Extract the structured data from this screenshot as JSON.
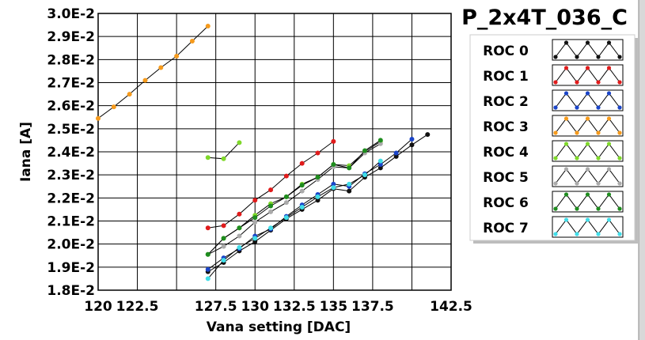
{
  "panel_title": "P_2x4T_036_C",
  "chart_data": {
    "type": "line",
    "title": "",
    "xlabel": "Vana setting [DAC]",
    "ylabel": "Iana [A]",
    "xlim": [
      120,
      142.5
    ],
    "ylim": [
      0.018,
      0.03
    ],
    "x_ticks": [
      120,
      122.5,
      125,
      127.5,
      130,
      132.5,
      135,
      137.5,
      140,
      142.5
    ],
    "x_tick_labels": [
      "120",
      "122.5",
      "",
      "127.5",
      "130",
      "132.5",
      "135",
      "137.5",
      "",
      "142.5"
    ],
    "y_ticks": [
      0.018,
      0.019,
      0.02,
      0.021,
      0.022,
      0.023,
      0.024,
      0.025,
      0.026,
      0.027,
      0.028,
      0.029,
      0.03
    ],
    "y_tick_labels": [
      "1.8E-2",
      "1.9E-2",
      "2.0E-2",
      "2.1E-2",
      "2.2E-2",
      "2.3E-2",
      "2.4E-2",
      "2.5E-2",
      "2.6E-2",
      "2.7E-2",
      "2.8E-2",
      "2.9E-2",
      "3.0E-2"
    ],
    "grid": true,
    "legend_position": "right",
    "series": [
      {
        "name": "ROC 0",
        "color": "#111111",
        "x": [
          127,
          128,
          129,
          130,
          131,
          132,
          133,
          134,
          135,
          136,
          137,
          138,
          139,
          140,
          141
        ],
        "y": [
          0.0188,
          0.0192,
          0.0197,
          0.0201,
          0.0206,
          0.0211,
          0.0215,
          0.0219,
          0.0224,
          0.0223,
          0.0229,
          0.0233,
          0.0238,
          0.0243,
          0.02475
        ]
      },
      {
        "name": "ROC 1",
        "color": "#e01b1b",
        "x": [
          127,
          128,
          129,
          130,
          131,
          132,
          133,
          134,
          135
        ],
        "y": [
          0.0207,
          0.0208,
          0.0213,
          0.0219,
          0.02235,
          0.02295,
          0.0235,
          0.02395,
          0.02445
        ]
      },
      {
        "name": "ROC 2",
        "color": "#1a44c8",
        "x": [
          127,
          128,
          129,
          130,
          131,
          132,
          133,
          134,
          135,
          136,
          137,
          138,
          139,
          140
        ],
        "y": [
          0.0189,
          0.0194,
          0.0198,
          0.02035,
          0.02065,
          0.0212,
          0.0217,
          0.02215,
          0.0226,
          0.0225,
          0.02305,
          0.02345,
          0.02395,
          0.02455
        ]
      },
      {
        "name": "ROC 3",
        "color": "#f59a1c",
        "x": [
          120,
          121,
          122,
          123,
          124,
          125,
          126,
          127
        ],
        "y": [
          0.02545,
          0.02595,
          0.0265,
          0.0271,
          0.02765,
          0.02815,
          0.0288,
          0.02945
        ]
      },
      {
        "name": "ROC 4",
        "color": "#7fd82a",
        "x": [
          127,
          128,
          129,
          130,
          131,
          132,
          133,
          134,
          135,
          136,
          137,
          138
        ],
        "y": [
          0.01955,
          0.02025,
          0.0207,
          0.02125,
          0.02175,
          0.02205,
          0.0226,
          0.0229,
          0.02345,
          0.0234,
          0.024,
          0.02445
        ]
      },
      {
        "name": "ROC 5",
        "color": "#aaaaaa",
        "x": [
          127,
          128,
          129,
          130,
          131,
          132,
          133,
          134,
          135,
          136,
          137,
          138
        ],
        "y": [
          0.01955,
          0.0199,
          0.02035,
          0.02095,
          0.0214,
          0.0218,
          0.0223,
          0.0228,
          0.02335,
          0.0233,
          0.02395,
          0.02435
        ]
      },
      {
        "name": "ROC 6",
        "color": "#1e8c1e",
        "x": [
          127,
          128,
          129,
          130,
          131,
          132,
          133,
          134,
          135,
          136,
          137,
          138
        ],
        "y": [
          0.01955,
          0.02025,
          0.0207,
          0.02115,
          0.02165,
          0.02205,
          0.02255,
          0.0229,
          0.02345,
          0.0233,
          0.02405,
          0.0245
        ]
      },
      {
        "name": "ROC 7",
        "color": "#40dde8",
        "x": [
          127,
          128,
          129,
          130,
          131,
          132,
          133,
          134,
          135,
          136,
          137,
          138
        ],
        "y": [
          0.0185,
          0.0193,
          0.01985,
          0.02025,
          0.0207,
          0.02115,
          0.0216,
          0.02205,
          0.02245,
          0.0226,
          0.023,
          0.0236
        ]
      },
      {
        "name": "",
        "color": "#7fd82a",
        "x": [
          127,
          128,
          129
        ],
        "y": [
          0.02375,
          0.0237,
          0.0244
        ]
      }
    ]
  }
}
